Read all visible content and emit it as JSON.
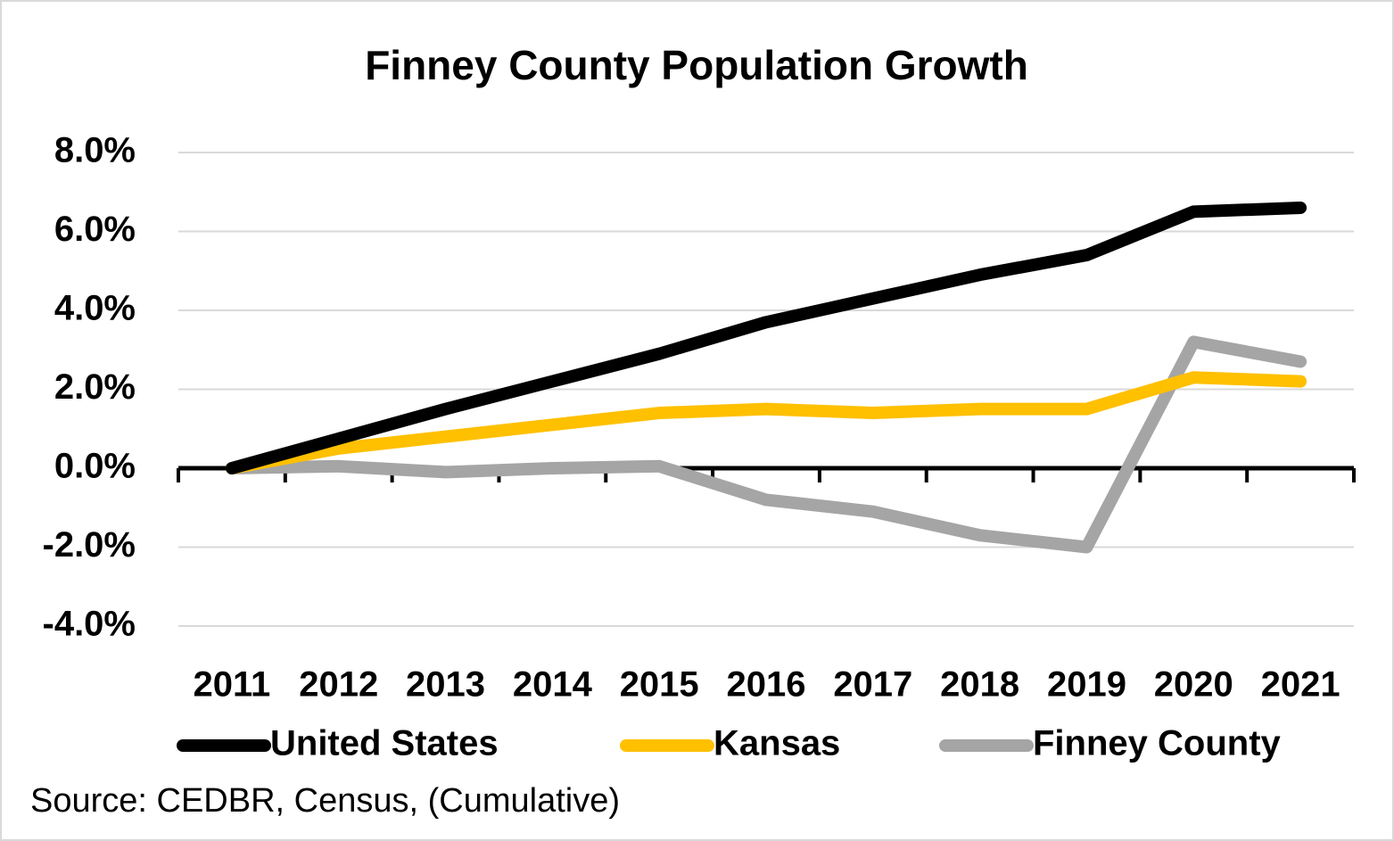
{
  "chart_data": {
    "type": "line",
    "title": "Finney County Population Growth",
    "source": "Source: CEDBR, Census, (Cumulative)",
    "categories": [
      "2011",
      "2012",
      "2013",
      "2014",
      "2015",
      "2016",
      "2017",
      "2018",
      "2019",
      "2020",
      "2021"
    ],
    "series": [
      {
        "name": "United States",
        "color": "#000000",
        "values": [
          0,
          0.75,
          1.5,
          2.2,
          2.9,
          3.7,
          4.3,
          4.9,
          5.4,
          6.5,
          6.6
        ]
      },
      {
        "name": "Kansas",
        "color": "#FFC000",
        "values": [
          0,
          0.5,
          0.8,
          1.1,
          1.4,
          1.5,
          1.4,
          1.5,
          1.5,
          2.3,
          2.2
        ]
      },
      {
        "name": "Finney County",
        "color": "#A5A5A5",
        "values": [
          0,
          0.05,
          -0.1,
          0,
          0.05,
          -0.8,
          -1.1,
          -1.7,
          -2.0,
          3.2,
          2.7
        ]
      }
    ],
    "ylim": [
      -4,
      8
    ],
    "yticks": [
      {
        "value": -4,
        "label": "-4.0%"
      },
      {
        "value": -2,
        "label": "-2.0%"
      },
      {
        "value": 0,
        "label": "0.0%"
      },
      {
        "value": 2,
        "label": "2.0%"
      },
      {
        "value": 4,
        "label": "4.0%"
      },
      {
        "value": 6,
        "label": "6.0%"
      },
      {
        "value": 8,
        "label": "8.0%"
      }
    ],
    "grid": true,
    "legend": "bottom"
  }
}
